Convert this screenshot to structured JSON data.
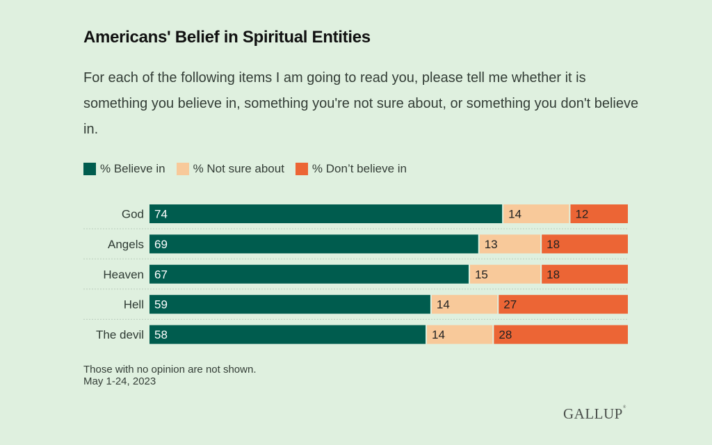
{
  "title": "Americans' Belief in Spiritual Entities",
  "subtitle": "For each of the following items I am going to read you, please tell me whether it is something you believe in, something you're not sure about, or something you don't believe in.",
  "legend": [
    {
      "label": "% Believe in",
      "color": "#005c4e"
    },
    {
      "label": "% Not sure about",
      "color": "#f8c99a"
    },
    {
      "label": "% Don’t believe in",
      "color": "#ec6535"
    }
  ],
  "chart_data": {
    "type": "bar",
    "orientation": "horizontal",
    "stacked": true,
    "title": "Americans' Belief in Spiritual Entities",
    "categories": [
      "God",
      "Angels",
      "Heaven",
      "Hell",
      "The devil"
    ],
    "series": [
      {
        "name": "% Believe in",
        "color": "#005c4e",
        "label_color": "#ffffff",
        "values": [
          74,
          69,
          67,
          59,
          58
        ]
      },
      {
        "name": "% Not sure about",
        "color": "#f8c99a",
        "label_color": "#222222",
        "values": [
          14,
          13,
          15,
          14,
          14
        ]
      },
      {
        "name": "% Don’t believe in",
        "color": "#ec6535",
        "label_color": "#222222",
        "values": [
          12,
          18,
          18,
          27,
          28
        ]
      }
    ],
    "xlim": [
      0,
      100
    ],
    "xlabel": "",
    "ylabel": "",
    "grid": false,
    "legend_position": "top-left",
    "data_labels": true
  },
  "footer": {
    "note": "Those with no opinion are not shown.",
    "date": "May 1-24, 2023"
  },
  "brand": "GALLUP",
  "brand_mark": "®"
}
